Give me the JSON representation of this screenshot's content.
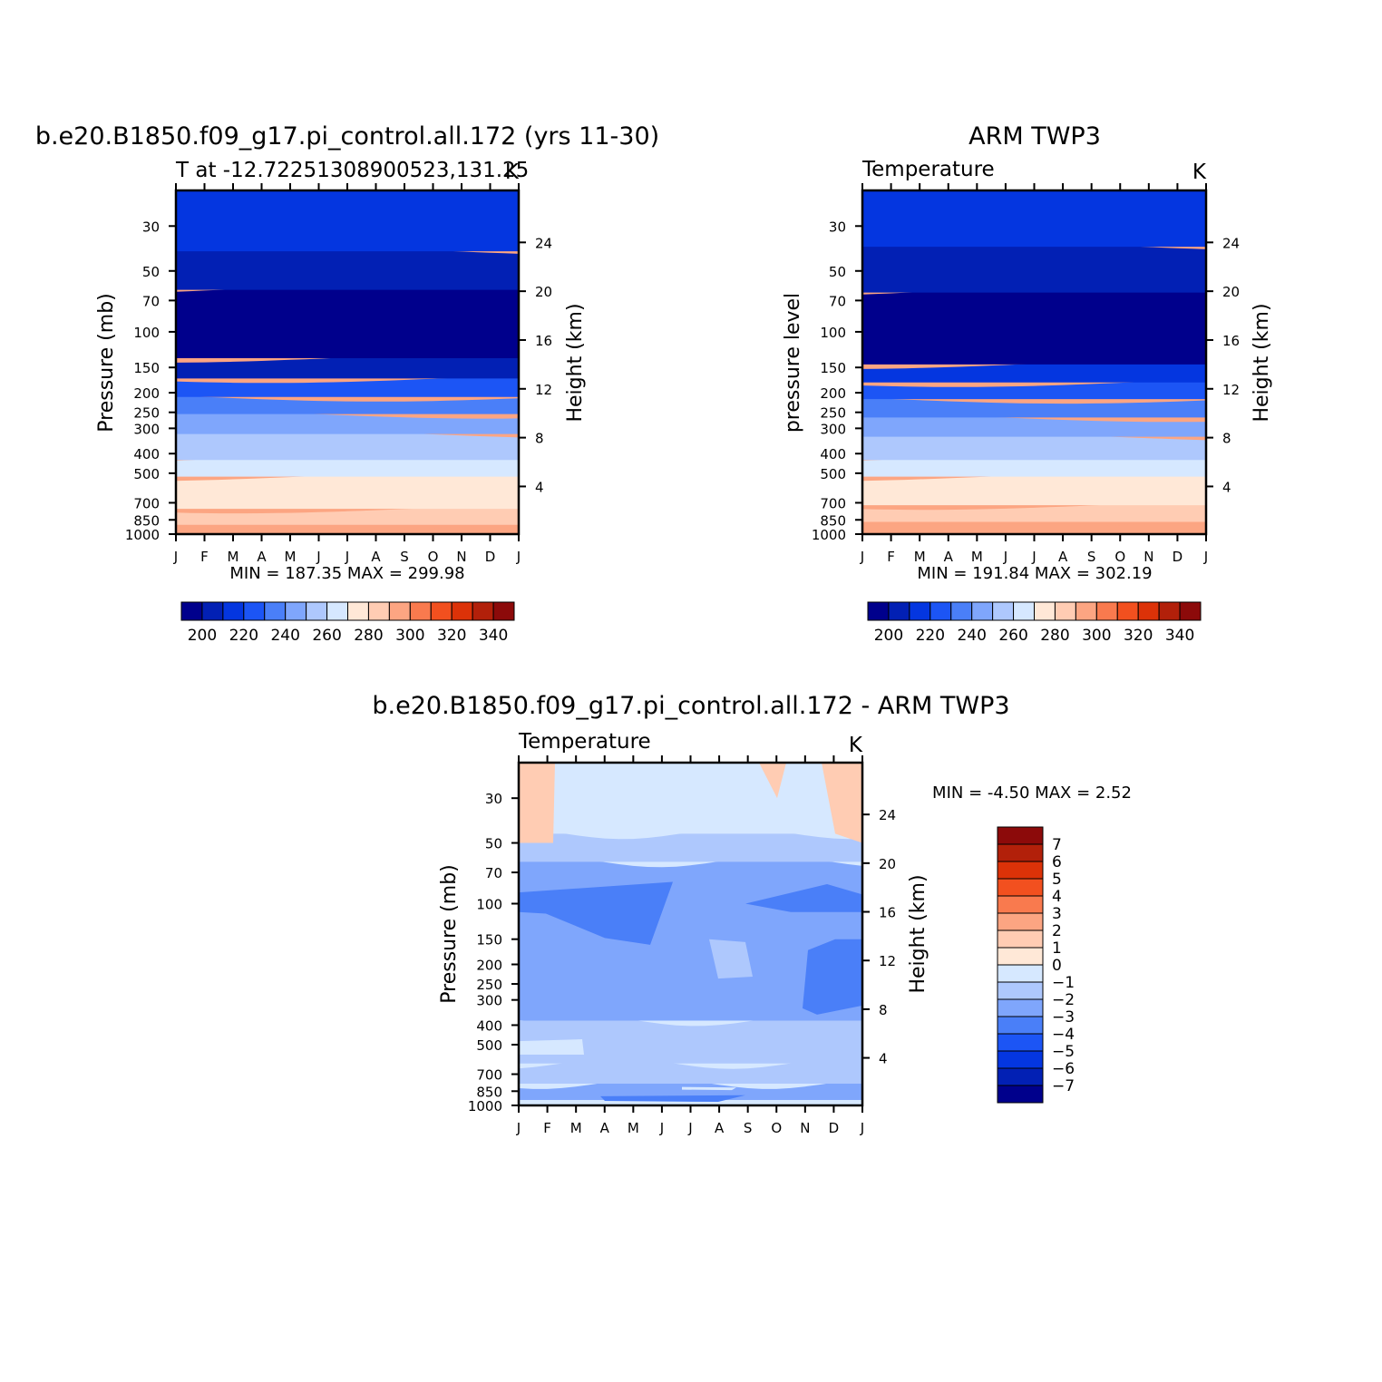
{
  "colors": {
    "temperature_palette": [
      "#00008c",
      "#0220b4",
      "#0436e0",
      "#1c55f5",
      "#4a7ff8",
      "#7fa6fc",
      "#aec8fd",
      "#d6e8ff",
      "#ffe8d7",
      "#ffccb3",
      "#fca582",
      "#f97a4e",
      "#f2501f",
      "#dc3208",
      "#b2200a",
      "#8c0a0a"
    ],
    "difference_palette": [
      "#00008c",
      "#0220b4",
      "#0436e0",
      "#1c55f5",
      "#4a7ff8",
      "#7fa6fc",
      "#aec8fd",
      "#d6e8ff",
      "#ffe8d7",
      "#ffccb3",
      "#fca582",
      "#f97a4e",
      "#f2501f",
      "#dc3208",
      "#b2200a",
      "#8c0a0a"
    ]
  },
  "chart_data": [
    {
      "type": "heatmap",
      "title": "b.e20.B1850.f09_g17.pi_control.all.172 (yrs 11-30)",
      "subtitle_left": "T at -12.72251308900523,131.25",
      "subtitle_right": "K",
      "ylabel": "Pressure (mb)",
      "ylabel_right": "Height (km)",
      "x_ticks": [
        "J",
        "F",
        "M",
        "A",
        "M",
        "J",
        "J",
        "A",
        "S",
        "O",
        "N",
        "D",
        "J"
      ],
      "y_ticks": [
        30,
        50,
        70,
        100,
        150,
        200,
        250,
        300,
        400,
        500,
        700,
        850,
        1000
      ],
      "y_ticks_right": [
        4,
        8,
        12,
        16,
        20,
        24
      ],
      "ylim": [
        20,
        1000
      ],
      "y_scale": "log",
      "min_text": "MIN = 187.35 MAX = 299.98",
      "min": 187.35,
      "max": 299.98,
      "bands": [
        {
          "bottom_p": 1000,
          "top_p": 900,
          "level": 10
        },
        {
          "bottom_p": 900,
          "top_p": 750,
          "level": 9
        },
        {
          "bottom_p": 750,
          "top_p": 520,
          "level": 8
        },
        {
          "bottom_p": 520,
          "top_p": 430,
          "level": 7
        },
        {
          "bottom_p": 430,
          "top_p": 320,
          "level": 6
        },
        {
          "bottom_p": 320,
          "top_p": 255,
          "level": 5
        },
        {
          "bottom_p": 255,
          "top_p": 210,
          "level": 4
        },
        {
          "bottom_p": 210,
          "top_p": 170,
          "level": 3
        },
        {
          "bottom_p": 170,
          "top_p": 135,
          "level": 1
        },
        {
          "bottom_p": 135,
          "top_p": 62,
          "level": 0
        },
        {
          "bottom_p": 62,
          "top_p": 40,
          "level": 1
        },
        {
          "bottom_p": 40,
          "top_p": 20,
          "level": 2
        }
      ],
      "colorbar_labels": [
        200,
        220,
        240,
        260,
        280,
        300,
        320,
        340
      ]
    },
    {
      "type": "heatmap",
      "title": "ARM TWP3",
      "subtitle_left": "Temperature",
      "subtitle_right": "K",
      "ylabel": "pressure level",
      "ylabel_right": "Height (km)",
      "x_ticks": [
        "J",
        "F",
        "M",
        "A",
        "M",
        "J",
        "J",
        "A",
        "S",
        "O",
        "N",
        "D",
        "J"
      ],
      "y_ticks": [
        30,
        50,
        70,
        100,
        150,
        200,
        250,
        300,
        400,
        500,
        700,
        850,
        1000
      ],
      "y_ticks_right": [
        4,
        8,
        12,
        16,
        20,
        24
      ],
      "ylim": [
        20,
        1000
      ],
      "y_scale": "log",
      "min_text": "MIN = 191.84 MAX = 302.19",
      "min": 191.84,
      "max": 302.19,
      "bands": [
        {
          "bottom_p": 1000,
          "top_p": 870,
          "level": 10
        },
        {
          "bottom_p": 870,
          "top_p": 720,
          "level": 9
        },
        {
          "bottom_p": 720,
          "top_p": 520,
          "level": 8
        },
        {
          "bottom_p": 520,
          "top_p": 430,
          "level": 7
        },
        {
          "bottom_p": 430,
          "top_p": 330,
          "level": 6
        },
        {
          "bottom_p": 330,
          "top_p": 265,
          "level": 5
        },
        {
          "bottom_p": 265,
          "top_p": 215,
          "level": 4
        },
        {
          "bottom_p": 215,
          "top_p": 178,
          "level": 3
        },
        {
          "bottom_p": 178,
          "top_p": 145,
          "level": 2
        },
        {
          "bottom_p": 145,
          "top_p": 64,
          "level": 0
        },
        {
          "bottom_p": 64,
          "top_p": 38,
          "level": 1
        },
        {
          "bottom_p": 38,
          "top_p": 20,
          "level": 2
        }
      ],
      "colorbar_labels": [
        200,
        220,
        240,
        260,
        280,
        300,
        320,
        340
      ]
    },
    {
      "type": "heatmap",
      "title": "b.e20.B1850.f09_g17.pi_control.all.172 - ARM TWP3",
      "subtitle_left": "Temperature",
      "subtitle_right": "K",
      "ylabel": "Pressure (mb)",
      "ylabel_right": "Height (km)",
      "x_ticks": [
        "J",
        "F",
        "M",
        "A",
        "M",
        "J",
        "J",
        "A",
        "S",
        "O",
        "N",
        "D",
        "J"
      ],
      "y_ticks": [
        30,
        50,
        70,
        100,
        150,
        200,
        250,
        300,
        400,
        500,
        700,
        850,
        1000
      ],
      "y_ticks_right": [
        4,
        8,
        12,
        16,
        20,
        24
      ],
      "ylim": [
        20,
        1000
      ],
      "y_scale": "log",
      "min_text": "MIN = -4.50 MAX = 2.52",
      "min": -4.5,
      "max": 2.52,
      "bands": [
        {
          "bottom_p": 1000,
          "top_p": 940,
          "level": 7
        },
        {
          "bottom_p": 940,
          "top_p": 780,
          "level": 5
        },
        {
          "bottom_p": 780,
          "top_p": 620,
          "level": 6
        },
        {
          "bottom_p": 620,
          "top_p": 380,
          "level": 6
        },
        {
          "bottom_p": 380,
          "top_p": 62,
          "level": 5
        },
        {
          "bottom_p": 62,
          "top_p": 45,
          "level": 6
        },
        {
          "bottom_p": 45,
          "top_p": 20,
          "level": 7
        }
      ],
      "colorbar_labels": [
        -7,
        -6,
        -5,
        -4,
        -3,
        -2,
        -1,
        0,
        1,
        2,
        3,
        4,
        5,
        6,
        7
      ]
    }
  ]
}
